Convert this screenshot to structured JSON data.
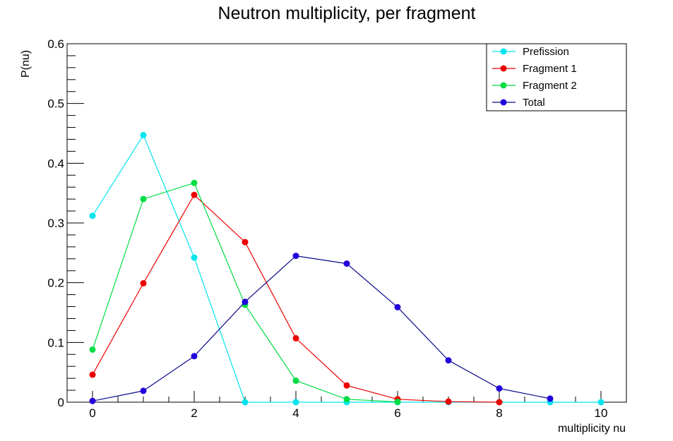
{
  "chart_data": {
    "type": "line",
    "title": "Neutron multiplicity, per fragment",
    "xlabel": "multiplicity nu",
    "ylabel": "P(nu)",
    "xlim": [
      -0.5,
      10.5
    ],
    "ylim": [
      0,
      0.6
    ],
    "x_ticks": [
      "0",
      "2",
      "4",
      "6",
      "8",
      "10"
    ],
    "y_ticks": [
      "0",
      "0.1",
      "0.2",
      "0.3",
      "0.4",
      "0.5",
      "0.6"
    ],
    "grid": false,
    "legend_position": "top-right",
    "series": [
      {
        "name": "Prefission",
        "color": "#00e5ee",
        "x": [
          0,
          1,
          2,
          3,
          4,
          5,
          6,
          7,
          8,
          9,
          10
        ],
        "y": [
          0.312,
          0.447,
          0.242,
          0,
          0,
          0,
          0,
          0,
          0,
          0,
          0
        ]
      },
      {
        "name": "Fragment 1",
        "color": "#ee0000",
        "x": [
          0,
          1,
          2,
          3,
          4,
          5,
          6,
          7,
          8
        ],
        "y": [
          0.046,
          0.199,
          0.347,
          0.268,
          0.107,
          0.028,
          0.005,
          0.001,
          0
        ]
      },
      {
        "name": "Fragment 2",
        "color": "#00dd44",
        "x": [
          0,
          1,
          2,
          3,
          4,
          5,
          6
        ],
        "y": [
          0.088,
          0.34,
          0.367,
          0.163,
          0.036,
          0.005,
          0.0005
        ]
      },
      {
        "name": "Total",
        "color": "#2200dd",
        "line_color": "#0a0a8a",
        "x": [
          0,
          1,
          2,
          3,
          4,
          5,
          6,
          7,
          8,
          9
        ],
        "y": [
          0.002,
          0.019,
          0.077,
          0.168,
          0.245,
          0.232,
          0.159,
          0.07,
          0.023,
          0.006
        ]
      }
    ]
  }
}
